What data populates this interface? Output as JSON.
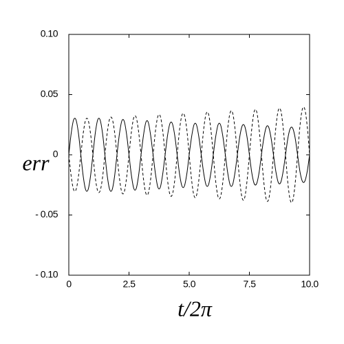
{
  "chart_data": {
    "type": "line",
    "xlabel": "t/2π",
    "ylabel": "err",
    "x": [
      0,
      0.1,
      0.2,
      0.3,
      0.4,
      0.5,
      0.6,
      0.7,
      0.8,
      0.9,
      1,
      1.1,
      1.2,
      1.3,
      1.4,
      1.5,
      1.6,
      1.7,
      1.8,
      1.9,
      2,
      2.1,
      2.2,
      2.3,
      2.4,
      2.5,
      2.6,
      2.7,
      2.8,
      2.9,
      3,
      3.1,
      3.2,
      3.3,
      3.4,
      3.5,
      3.6,
      3.7,
      3.8,
      3.9,
      4,
      4.1,
      4.2,
      4.3,
      4.4,
      4.5,
      4.6,
      4.7,
      4.8,
      4.9,
      5,
      5.1,
      5.2,
      5.3,
      5.4,
      5.5,
      5.6,
      5.7,
      5.8,
      5.9,
      6,
      6.1,
      6.2,
      6.3,
      6.4,
      6.5,
      6.6,
      6.7,
      6.8,
      6.9,
      7,
      7.1,
      7.2,
      7.3,
      7.4,
      7.5,
      7.6,
      7.7,
      7.8,
      7.9,
      8,
      8.1,
      8.2,
      8.3,
      8.4,
      8.5,
      8.6,
      8.7,
      8.8,
      8.9,
      9,
      9.1,
      9.2,
      9.3,
      9.4,
      9.5,
      9.6,
      9.7,
      9.8,
      9.9,
      10
    ],
    "series": [
      {
        "color": "#000000",
        "linestyle": "solid",
        "values": [
          0,
          0.018,
          0.029,
          0.029,
          0.018,
          0,
          -0.018,
          -0.029,
          -0.029,
          -0.018,
          0,
          0.018,
          0.029,
          0.029,
          0.018,
          0,
          -0.018,
          -0.029,
          -0.029,
          -0.018,
          0,
          0.017,
          0.028,
          0.028,
          0.017,
          0,
          -0.017,
          -0.028,
          -0.028,
          -0.017,
          0,
          0.016,
          0.027,
          0.027,
          0.016,
          0,
          -0.016,
          -0.027,
          -0.027,
          -0.016,
          0,
          0.016,
          0.026,
          0.026,
          0.016,
          0,
          -0.016,
          -0.026,
          -0.026,
          -0.016,
          0,
          0.015,
          0.025,
          0.025,
          0.015,
          0,
          -0.015,
          -0.025,
          -0.025,
          -0.015,
          0,
          0.015,
          0.025,
          0.025,
          0.015,
          0,
          -0.015,
          -0.025,
          -0.025,
          -0.015,
          0,
          0.015,
          0.024,
          0.024,
          0.015,
          0,
          -0.015,
          -0.024,
          -0.024,
          -0.015,
          0,
          0.014,
          0.023,
          0.023,
          0.014,
          0,
          -0.014,
          -0.023,
          -0.023,
          -0.014,
          0,
          0.014,
          0.022,
          0.022,
          0.014,
          0,
          -0.014,
          -0.022,
          -0.022,
          -0.014,
          0
        ]
      },
      {
        "color": "#000000",
        "linestyle": "dashed",
        "values": [
          0,
          -0.018,
          -0.029,
          -0.029,
          -0.018,
          0,
          0.018,
          0.029,
          0.029,
          0.018,
          0,
          -0.019,
          -0.03,
          -0.03,
          -0.019,
          0,
          0.019,
          0.03,
          0.03,
          0.019,
          0,
          -0.019,
          -0.031,
          -0.031,
          -0.019,
          0,
          0.019,
          0.031,
          0.031,
          0.019,
          0,
          -0.02,
          -0.032,
          -0.032,
          -0.02,
          0,
          0.02,
          0.032,
          0.032,
          0.02,
          0,
          -0.021,
          -0.033,
          -0.033,
          -0.021,
          0,
          0.021,
          0.033,
          0.033,
          0.021,
          0,
          -0.021,
          -0.034,
          -0.034,
          -0.021,
          0,
          0.021,
          0.034,
          0.034,
          0.021,
          0,
          -0.022,
          -0.035,
          -0.035,
          -0.022,
          0,
          0.022,
          0.035,
          0.035,
          0.022,
          0,
          -0.022,
          -0.036,
          -0.036,
          -0.022,
          0,
          0.022,
          0.036,
          0.036,
          0.022,
          0,
          -0.023,
          -0.037,
          -0.037,
          -0.023,
          0,
          0.023,
          0.037,
          0.037,
          0.023,
          0,
          -0.024,
          -0.038,
          -0.038,
          -0.024,
          0,
          0.024,
          0.038,
          0.038,
          0.024,
          0
        ]
      }
    ],
    "xlim": [
      0,
      10
    ],
    "xticks": [
      0,
      2.5,
      {
        "value": 5,
        "label": "5.0"
      },
      7.5,
      {
        "value": 10,
        "label": "10.0"
      }
    ],
    "ylim": [
      -0.1,
      0.1
    ],
    "yticks": [
      {
        "value": -0.1,
        "label": "- 0.10"
      },
      {
        "value": -0.05,
        "label": "- 0.05"
      },
      0,
      0.05,
      {
        "value": 0.1,
        "label": "0.10"
      }
    ],
    "grid": false
  }
}
